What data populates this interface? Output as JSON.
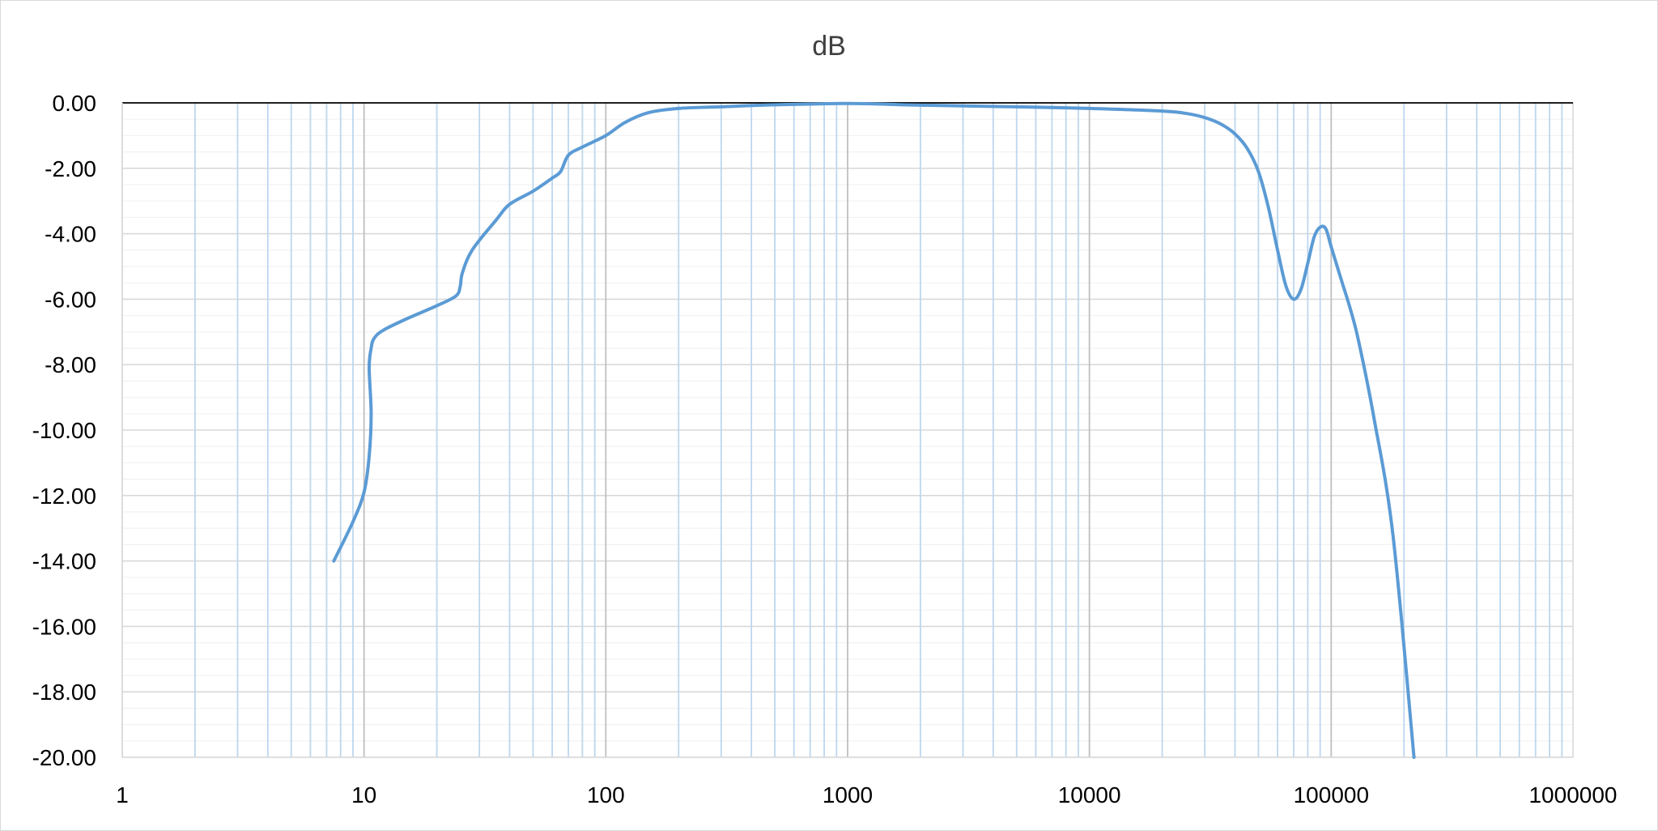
{
  "chart_data": {
    "type": "line",
    "title": "dB",
    "xlabel": "",
    "ylabel": "",
    "x_scale": "log",
    "xlim": [
      1,
      1000000
    ],
    "ylim": [
      -20,
      0
    ],
    "x_tick_labels": [
      "1",
      "10",
      "100",
      "1000",
      "10000",
      "100000",
      "1000000"
    ],
    "y_tick_labels": [
      "0.00",
      "-2.00",
      "-4.00",
      "-6.00",
      "-8.00",
      "-10.00",
      "-12.00",
      "-14.00",
      "-16.00",
      "-18.00",
      "-20.00"
    ],
    "grid": true,
    "legend": "none",
    "colors": {
      "line": "#5b9bd5",
      "minor_vertical_grid": "#bdd7ee",
      "major_vertical_grid": "#bfbfbf",
      "horizontal_grid": "#d9d9d9",
      "minor_horizontal_grid": "#f2f2f2",
      "axis": "#000000"
    },
    "series": [
      {
        "x": [
          7.5,
          9,
          10,
          10.5,
          10.7,
          10.5,
          10.7,
          11,
          12,
          15,
          20,
          24,
          25,
          25.5,
          28,
          35,
          40,
          50,
          60,
          65,
          70,
          80,
          100,
          120,
          150,
          200,
          300,
          500,
          1000,
          2000,
          5000,
          10000,
          20000,
          25000,
          30000,
          35000,
          40000,
          45000,
          50000,
          55000,
          60000,
          65000,
          70000,
          75000,
          80000,
          85000,
          90000,
          95000,
          100000,
          110000,
          120000,
          130000,
          150000,
          180000,
          220000
        ],
        "y": [
          -14.0,
          -12.8,
          -11.9,
          -10.8,
          -9.5,
          -8.1,
          -7.5,
          -7.2,
          -6.95,
          -6.6,
          -6.2,
          -5.9,
          -5.6,
          -5.2,
          -4.5,
          -3.6,
          -3.1,
          -2.7,
          -2.3,
          -2.1,
          -1.6,
          -1.35,
          -1.0,
          -0.6,
          -0.3,
          -0.17,
          -0.12,
          -0.06,
          -0.02,
          -0.07,
          -0.12,
          -0.17,
          -0.25,
          -0.32,
          -0.45,
          -0.65,
          -0.95,
          -1.4,
          -2.1,
          -3.2,
          -4.5,
          -5.6,
          -6.0,
          -5.7,
          -4.9,
          -4.1,
          -3.8,
          -3.85,
          -4.4,
          -5.4,
          -6.3,
          -7.3,
          -9.6,
          -13.2,
          -20.0
        ]
      }
    ]
  }
}
